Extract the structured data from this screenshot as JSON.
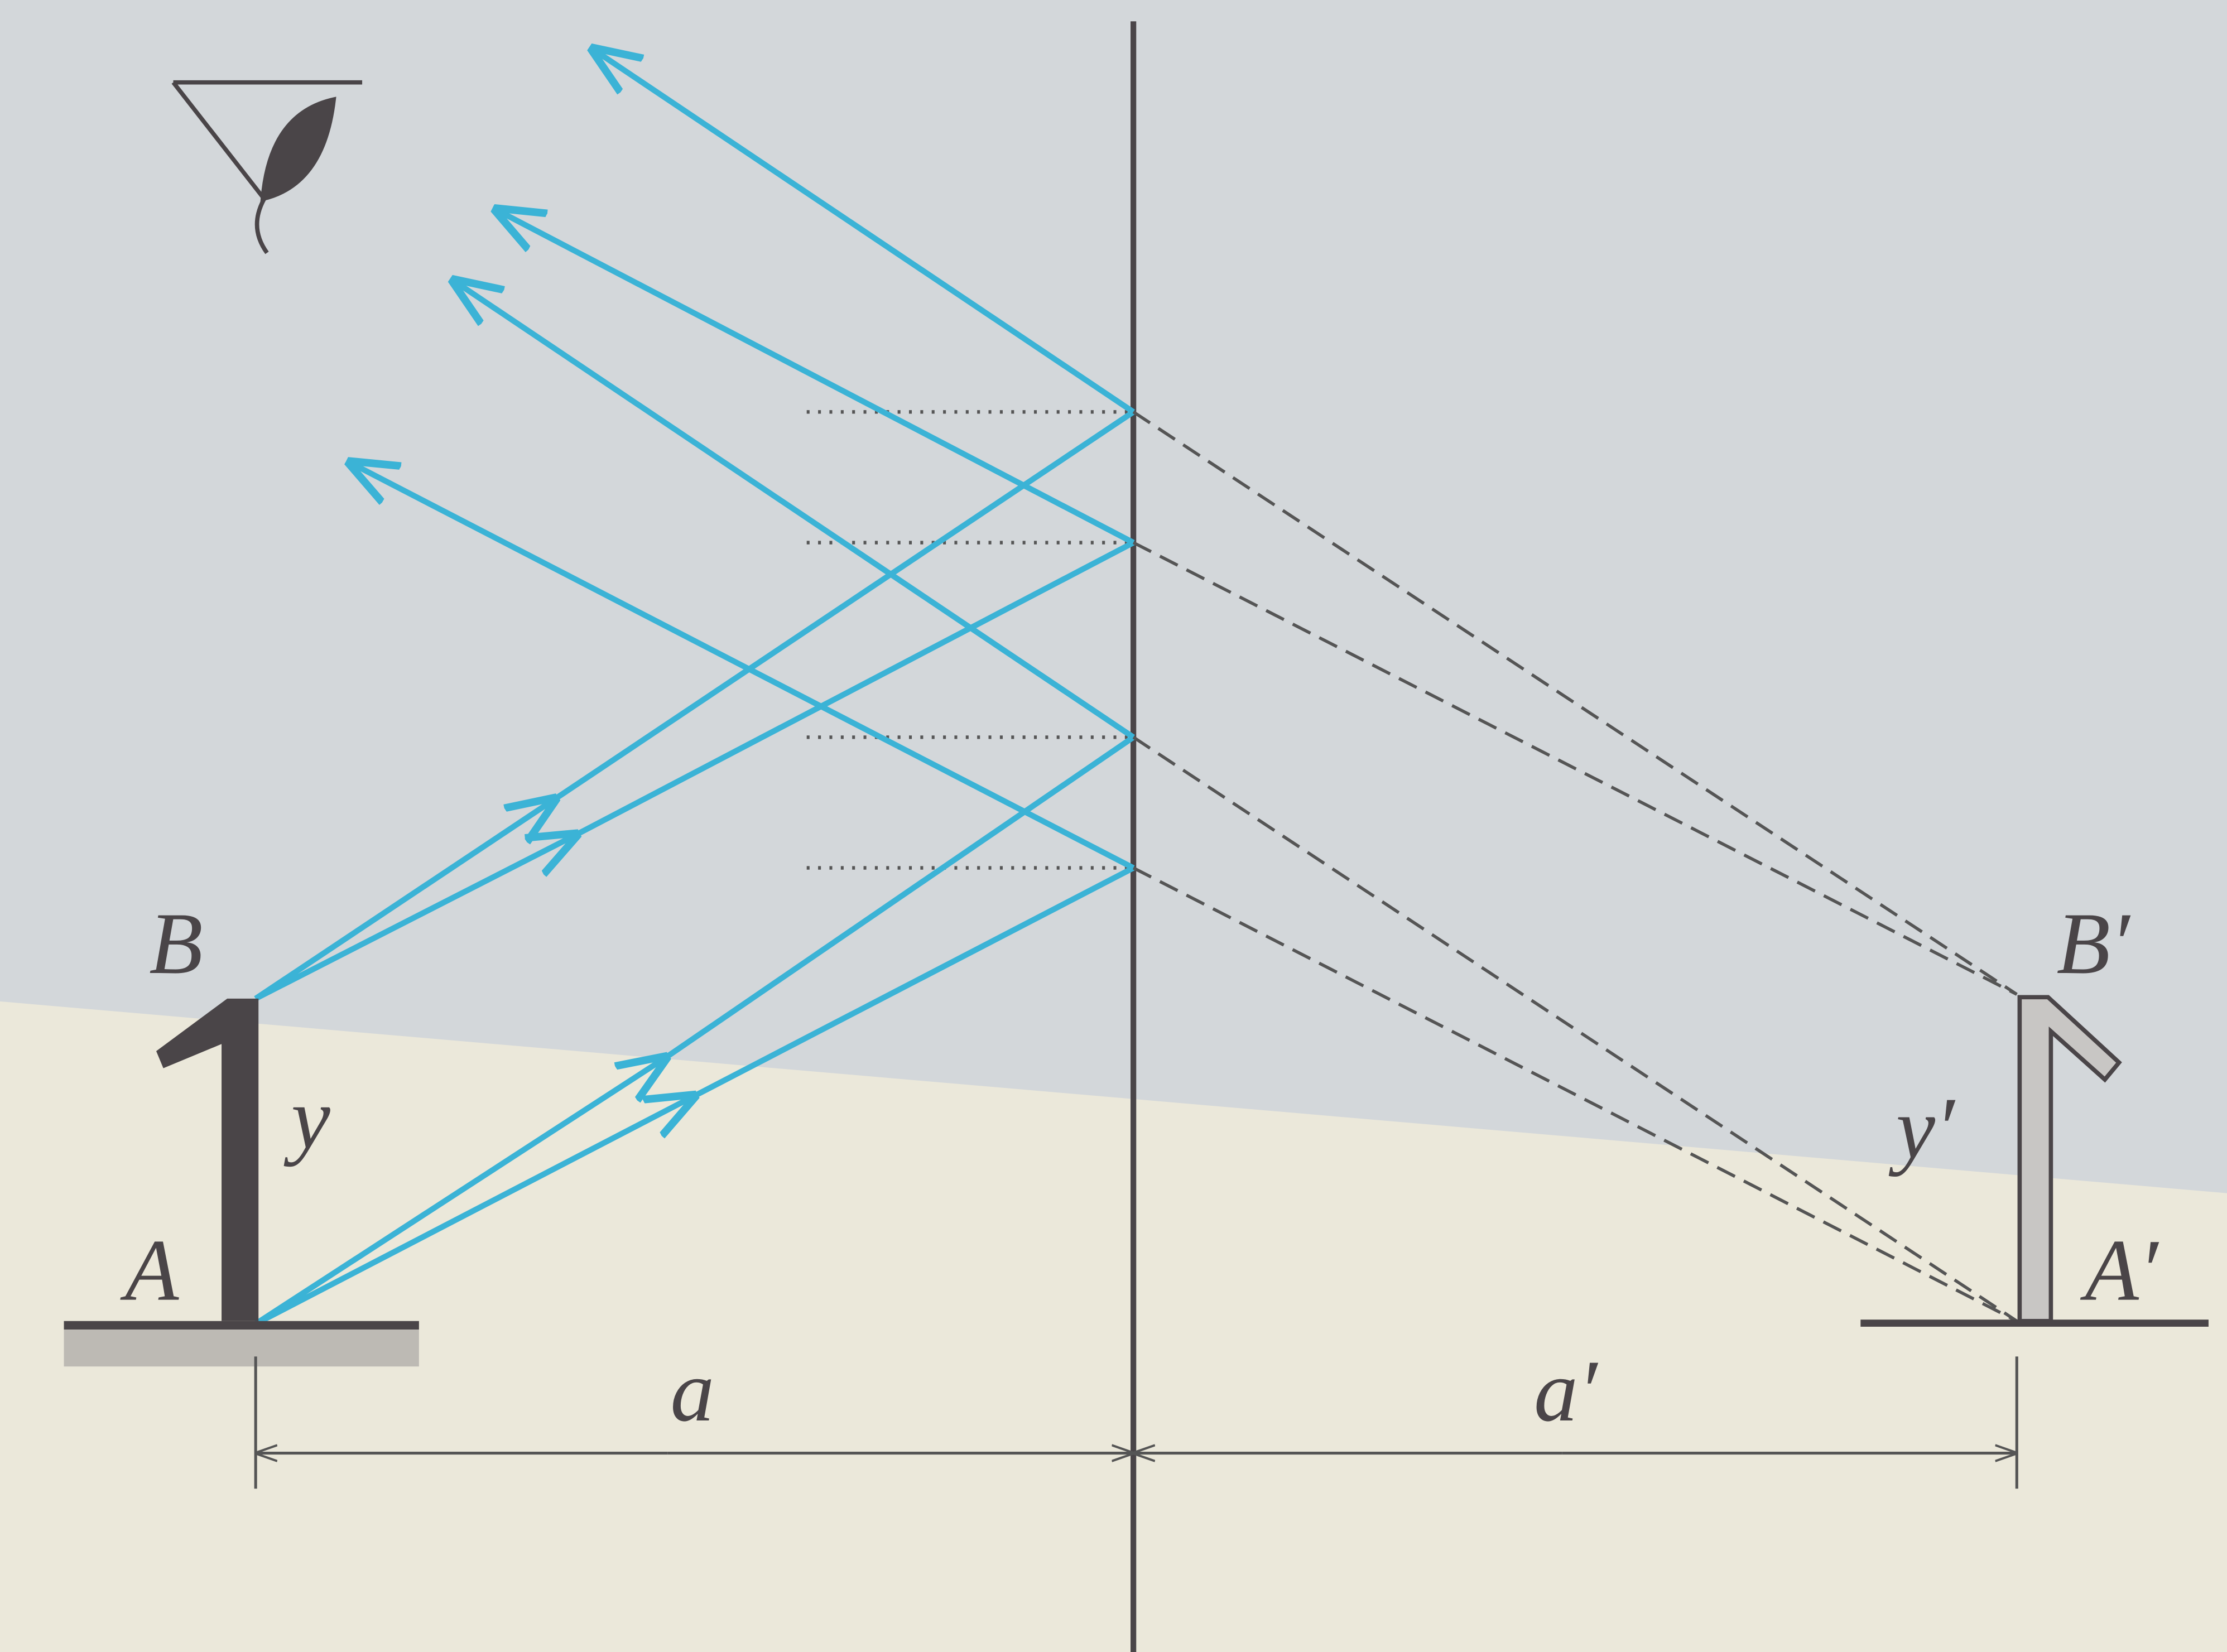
{
  "labels": {
    "object_top": "B",
    "object_bottom": "A",
    "object_height": "y",
    "image_top": "B′",
    "image_bottom": "A′",
    "image_height": "y′",
    "object_distance": "a",
    "image_distance": "a′"
  }
}
